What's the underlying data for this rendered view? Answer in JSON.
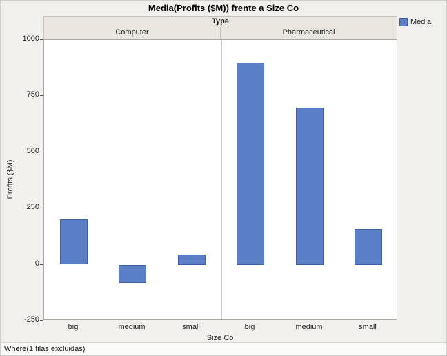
{
  "title": "Media(Profits ($M)) frente a Size Co",
  "legend": {
    "label": "Media",
    "color": "#5b7fc7"
  },
  "status_text": "Where(1 filas excluidas)",
  "chart_data": {
    "type": "bar",
    "title": "Media(Profits ($M)) frente a Size Co",
    "facet_by": "Type",
    "xlabel": "Size Co",
    "ylabel": "Profits ($M)",
    "ylim": [
      -250,
      1000
    ],
    "yticks": [
      1000,
      750,
      500,
      250,
      0,
      -250
    ],
    "series_name": "Media",
    "bar_color": "#5b7fc7",
    "legend_position": "right",
    "grid": false,
    "groups": [
      {
        "name": "Computer",
        "categories": [
          "big",
          "medium",
          "small"
        ],
        "values": [
          200,
          -80,
          45
        ]
      },
      {
        "name": "Pharmaceutical",
        "categories": [
          "big",
          "medium",
          "small"
        ],
        "values": [
          900,
          700,
          160
        ]
      }
    ]
  }
}
